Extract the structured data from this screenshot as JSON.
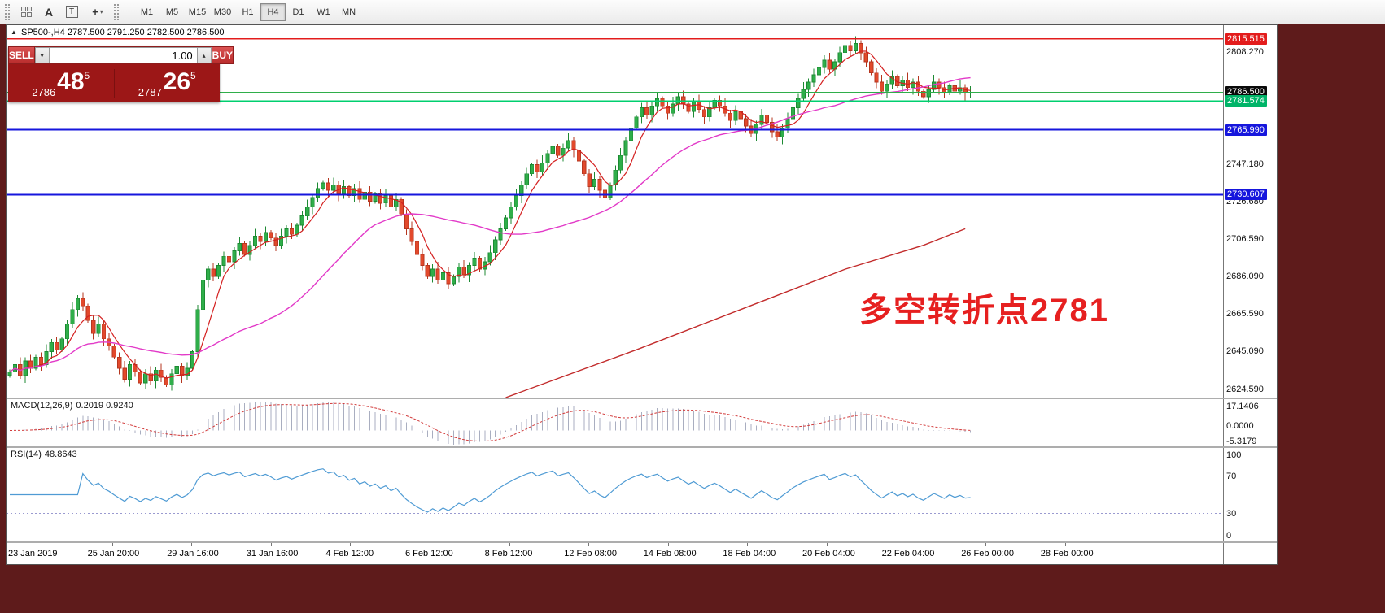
{
  "toolbar": {
    "icons": [
      {
        "name": "chart-grid-icon",
        "glyph": ""
      },
      {
        "name": "text-annotation-icon",
        "glyph": "A"
      },
      {
        "name": "text-label-icon",
        "glyph": "T"
      },
      {
        "name": "crosshair-tool-icon",
        "glyph": "+"
      },
      {
        "name": "dropdown-arrow-icon",
        "glyph": "▾"
      }
    ],
    "timeframes": [
      "M1",
      "M5",
      "M15",
      "M30",
      "H1",
      "H4",
      "D1",
      "W1",
      "MN"
    ],
    "active_timeframe": "H4"
  },
  "chart_header": {
    "symbol_tf": "SP500-,H4",
    "ohlc": "2787.500 2791.250 2782.500 2786.500"
  },
  "trade_panel": {
    "sell_label": "SELL",
    "buy_label": "BUY",
    "volume": "1.00",
    "dropdown_glyph": "▾",
    "up_glyph": "▴",
    "sell": {
      "prefix": "2786",
      "big": "48",
      "sup": "5"
    },
    "buy": {
      "prefix": "2787",
      "big": "26",
      "sup": "5"
    }
  },
  "annotation": {
    "text": "多空转折点2781"
  },
  "levels": [
    {
      "price": 2815.515,
      "label": "2815.515",
      "box_color": "#e31c1c",
      "line_color": "#e31c1c",
      "line_width": 1.5
    },
    {
      "price": 2786.5,
      "label": "2786.500",
      "box_color": "#0a0a0a",
      "line_color": "#2fae4a",
      "line_width": 1
    },
    {
      "price": 2781.574,
      "label": "2781.574",
      "box_color": "#00b468",
      "line_color": "#00cf6f",
      "line_width": 2
    },
    {
      "price": 2765.99,
      "label": "2765.990",
      "box_color": "#1616dd",
      "line_color": "#1616dd",
      "line_width": 2
    },
    {
      "price": 2730.607,
      "label": "2730.607",
      "box_color": "#1616dd",
      "line_color": "#1616dd",
      "line_width": 2
    }
  ],
  "axis": {
    "main_labels": [
      {
        "price": 2808.27,
        "text": "2808.270"
      },
      {
        "price": 2747.18,
        "text": "2747.180"
      },
      {
        "price": 2726.68,
        "text": "2726.680"
      },
      {
        "price": 2706.59,
        "text": "2706.590"
      },
      {
        "price": 2686.09,
        "text": "2686.090"
      },
      {
        "price": 2665.59,
        "text": "2665.590"
      },
      {
        "price": 2645.09,
        "text": "2645.090"
      },
      {
        "price": 2624.59,
        "text": "2624.590"
      }
    ]
  },
  "macd": {
    "name": "MACD(12,26,9)",
    "values": "0.2019 0.9240",
    "labels": [
      "17.1406",
      "0.0000",
      "-5.3179"
    ]
  },
  "rsi": {
    "name": "RSI(14)",
    "value": "48.8643",
    "labels": [
      "100",
      "70",
      "30",
      "0"
    ],
    "level_lines": [
      70,
      30
    ]
  },
  "time_axis": [
    "23 Jan 2019",
    "25 Jan 20:00",
    "29 Jan 16:00",
    "31 Jan 16:00",
    "4 Feb 12:00",
    "6 Feb 12:00",
    "8 Feb 12:00",
    "12 Feb 08:00",
    "14 Feb 08:00",
    "18 Feb 04:00",
    "20 Feb 04:00",
    "22 Feb 04:00",
    "26 Feb 00:00",
    "28 Feb 00:00"
  ],
  "colors": {
    "candle_up": "#2fae4a",
    "candle_up_border": "#1d8a33",
    "candle_down": "#e2492c",
    "candle_down_border": "#b5361f",
    "ma_fast": "#d42020",
    "ma_slow": "#e23ac8",
    "trendline": "#c22b2b",
    "macd_bar": "#a9aec0",
    "macd_signal": "#d23b3b",
    "rsi_line": "#4f9bd4",
    "rsi_level": "#9a9ad0",
    "annotation": "#e62020",
    "widget_button": "#cc3b3b",
    "widget_body": "#b32424",
    "widget_price_area": "#9c1717",
    "workspace_background": "#5e1b1b"
  },
  "chart_data": {
    "type": "candlestick",
    "symbol": "SP500-",
    "timeframe": "H4",
    "price_range": [
      2620,
      2823
    ],
    "ma_periods": {
      "fast": 6,
      "slow": 34
    },
    "closes": [
      2634,
      2638,
      2632,
      2640,
      2636,
      2642,
      2638,
      2645,
      2650,
      2646,
      2652,
      2660,
      2668,
      2674,
      2670,
      2662,
      2655,
      2660,
      2652,
      2648,
      2642,
      2636,
      2630,
      2638,
      2634,
      2628,
      2633,
      2629,
      2635,
      2631,
      2627,
      2633,
      2637,
      2632,
      2636,
      2645,
      2668,
      2684,
      2690,
      2686,
      2692,
      2697,
      2694,
      2700,
      2704,
      2698,
      2703,
      2708,
      2705,
      2710,
      2707,
      2703,
      2708,
      2712,
      2709,
      2714,
      2719,
      2724,
      2729,
      2734,
      2737,
      2733,
      2736,
      2731,
      2735,
      2730,
      2734,
      2728,
      2732,
      2727,
      2731,
      2726,
      2730,
      2724,
      2728,
      2720,
      2712,
      2705,
      2698,
      2692,
      2686,
      2690,
      2684,
      2688,
      2682,
      2686,
      2691,
      2687,
      2692,
      2696,
      2690,
      2694,
      2699,
      2706,
      2712,
      2718,
      2724,
      2730,
      2736,
      2742,
      2747,
      2743,
      2748,
      2753,
      2757,
      2752,
      2756,
      2760,
      2755,
      2749,
      2742,
      2735,
      2739,
      2733,
      2729,
      2736,
      2744,
      2752,
      2760,
      2767,
      2773,
      2778,
      2774,
      2779,
      2783,
      2779,
      2775,
      2780,
      2784,
      2780,
      2776,
      2781,
      2777,
      2773,
      2778,
      2782,
      2779,
      2775,
      2771,
      2776,
      2772,
      2768,
      2764,
      2769,
      2774,
      2770,
      2765,
      2762,
      2767,
      2772,
      2778,
      2783,
      2788,
      2792,
      2796,
      2800,
      2804,
      2799,
      2803,
      2808,
      2812,
      2809,
      2813,
      2808,
      2803,
      2797,
      2792,
      2787,
      2791,
      2795,
      2790,
      2793,
      2789,
      2792,
      2787,
      2784,
      2788,
      2792,
      2789,
      2786,
      2790,
      2787,
      2789,
      2786,
      2786.5
    ],
    "trendline_anchors": [
      [
        95,
        2620
      ],
      [
        120,
        2646
      ],
      [
        140,
        2668
      ],
      [
        160,
        2690
      ],
      [
        175,
        2703
      ],
      [
        183,
        2712
      ]
    ]
  }
}
